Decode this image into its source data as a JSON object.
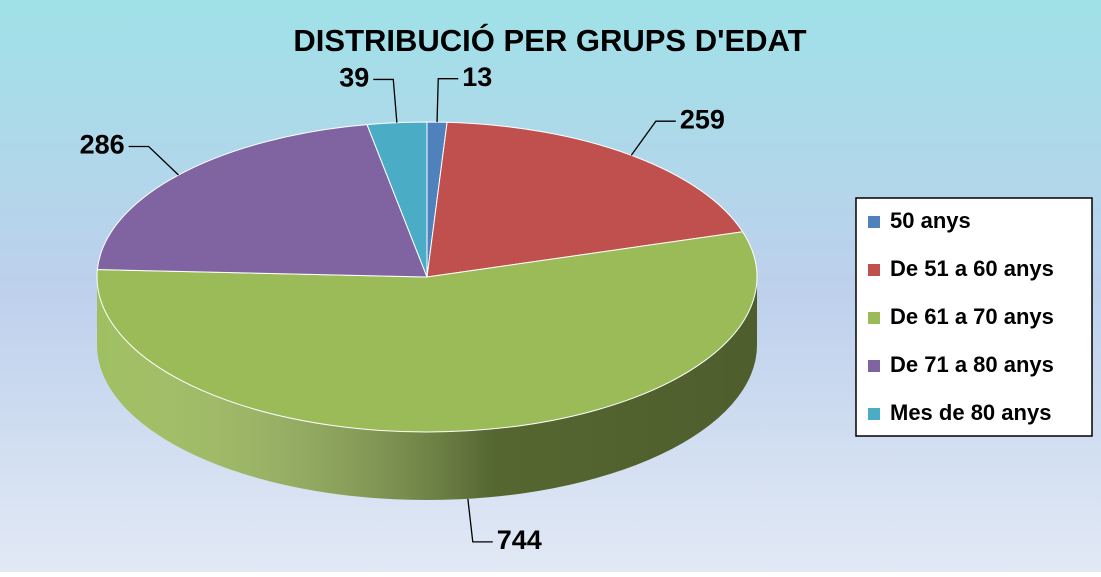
{
  "chart_data": {
    "type": "pie3d",
    "title": "DISTRIBUCIÓ PER GRUPS D'EDAT",
    "categories": [
      "50 anys",
      "De 51 a 60 anys",
      "De 61 a 70 anys",
      "De 71 a 80 anys",
      "Mes de 80 anys"
    ],
    "values": [
      13,
      259,
      744,
      286,
      39
    ],
    "colors": [
      "#4f81bd",
      "#c0504d",
      "#9bbb59",
      "#8064a2",
      "#4bacc6"
    ],
    "legend": "right"
  }
}
